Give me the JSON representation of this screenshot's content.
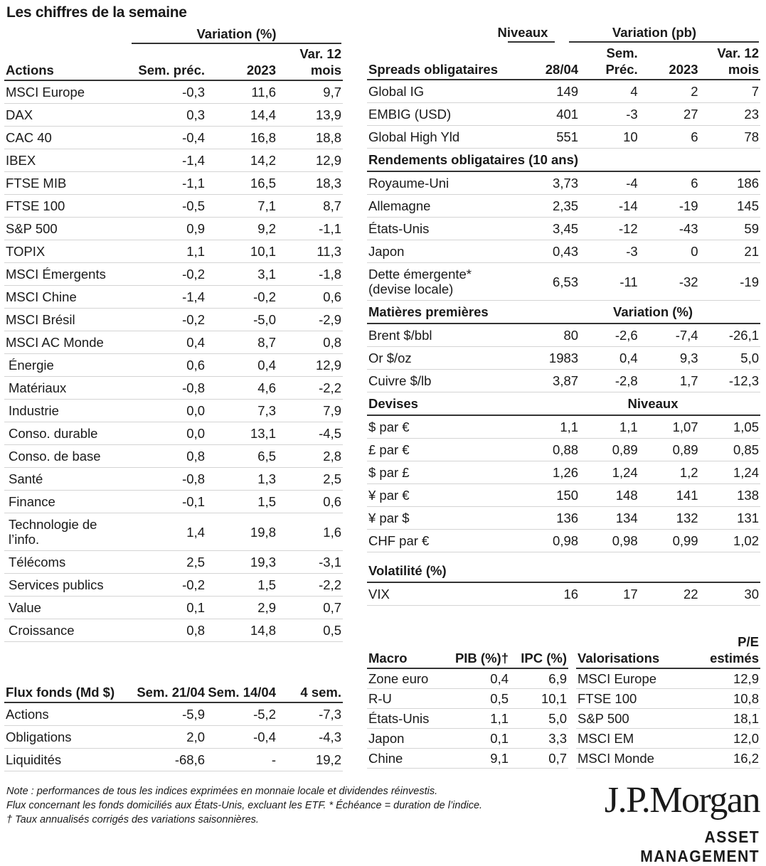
{
  "title": "Les chiffres de la semaine",
  "actions": {
    "group_label": "Variation (%)",
    "headers": [
      "Actions",
      "Sem. préc.",
      "2023",
      "Var. 12 mois"
    ],
    "rows": [
      [
        "MSCI Europe",
        "-0,3",
        "11,6",
        "9,7"
      ],
      [
        "DAX",
        "0,3",
        "14,4",
        "13,9"
      ],
      [
        "CAC 40",
        "-0,4",
        "16,8",
        "18,8"
      ],
      [
        "IBEX",
        "-1,4",
        "14,2",
        "12,9"
      ],
      [
        "FTSE MIB",
        "-1,1",
        "16,5",
        "18,3"
      ],
      [
        "FTSE 100",
        "-0,5",
        "7,1",
        "8,7"
      ],
      [
        "S&P 500",
        "0,9",
        "9,2",
        "-1,1"
      ],
      [
        "TOPIX",
        "1,1",
        "10,1",
        "11,3"
      ],
      [
        "MSCI Émergents",
        "-0,2",
        "3,1",
        "-1,8"
      ],
      [
        "MSCI Chine",
        "-1,4",
        "-0,2",
        "0,6"
      ],
      [
        "MSCI Brésil",
        "-0,2",
        "-5,0",
        "-2,9"
      ],
      [
        "MSCI AC Monde",
        "0,4",
        "8,7",
        "0,8"
      ],
      [
        "Énergie",
        "0,6",
        "0,4",
        "12,9"
      ],
      [
        "Matériaux",
        "-0,8",
        "4,6",
        "-2,2"
      ],
      [
        "Industrie",
        "0,0",
        "7,3",
        "7,9"
      ],
      [
        "Conso. durable",
        "0,0",
        "13,1",
        "-4,5"
      ],
      [
        "Conso. de base",
        "0,8",
        "6,5",
        "2,8"
      ],
      [
        "Santé",
        "-0,8",
        "1,3",
        "2,5"
      ],
      [
        "Finance",
        "-0,1",
        "1,5",
        "0,6"
      ],
      [
        "Technologie de l’info.",
        "1,4",
        "19,8",
        "1,6"
      ],
      [
        "Télécoms",
        "2,5",
        "19,3",
        "-3,1"
      ],
      [
        "Services publics",
        "-0,2",
        "1,5",
        "-2,2"
      ],
      [
        "Value",
        "0,1",
        "2,9",
        "0,7"
      ],
      [
        "Croissance",
        "0,8",
        "14,8",
        "0,5"
      ]
    ]
  },
  "flux": {
    "headers": [
      "Flux fonds (Md $)",
      "Sem. 21/04",
      "Sem. 14/04",
      "4 sem."
    ],
    "rows": [
      [
        "Actions",
        "-5,9",
        "-5,2",
        "-7,3"
      ],
      [
        "Obligations",
        "2,0",
        "-0,4",
        "-4,3"
      ],
      [
        "Liquidités",
        "-68,6",
        "-",
        "19,2"
      ]
    ]
  },
  "spreads": {
    "group_levels": "Niveaux",
    "group_variation": "Variation (pb)",
    "headers": [
      "Spreads obligataires",
      "28/04",
      "Sem. Préc.",
      "2023",
      "Var. 12 mois"
    ],
    "sections": [
      {
        "heading": null,
        "rows": [
          [
            "Global IG",
            "149",
            "4",
            "2",
            "7"
          ],
          [
            "EMBIG (USD)",
            "401",
            "-3",
            "27",
            "23"
          ],
          [
            "Global High Yld",
            "551",
            "10",
            "6",
            "78"
          ]
        ]
      },
      {
        "heading": "Rendements obligataires (10 ans)",
        "heading_right": "",
        "rows": [
          [
            "Royaume-Uni",
            "3,73",
            "-4",
            "6",
            "186"
          ],
          [
            "Allemagne",
            "2,35",
            "-14",
            "-19",
            "145"
          ],
          [
            "États-Unis",
            "3,45",
            "-12",
            "-43",
            "59"
          ],
          [
            "Japon",
            "0,43",
            "-3",
            "0",
            "21"
          ],
          [
            "Dette émergente* (devise locale)",
            "6,53",
            "-11",
            "-32",
            "-19"
          ]
        ]
      },
      {
        "heading": "Matières premières",
        "heading_right": "Variation (%)",
        "rows": [
          [
            "Brent $/bbl",
            "80",
            "-2,6",
            "-7,4",
            "-26,1"
          ],
          [
            "Or $/oz",
            "1983",
            "0,4",
            "9,3",
            "5,0"
          ],
          [
            "Cuivre $/lb",
            "3,87",
            "-2,8",
            "1,7",
            "-12,3"
          ]
        ]
      },
      {
        "heading": "Devises",
        "heading_right": "Niveaux",
        "rows": [
          [
            "$ par €",
            "1,1",
            "1,1",
            "1,07",
            "1,05"
          ],
          [
            "£ par €",
            "0,88",
            "0,89",
            "0,89",
            "0,85"
          ],
          [
            "$ par £",
            "1,26",
            "1,24",
            "1,2",
            "1,24"
          ],
          [
            "¥ par €",
            "150",
            "148",
            "141",
            "138"
          ],
          [
            "¥ par $",
            "136",
            "134",
            "132",
            "131"
          ],
          [
            "CHF par €",
            "0,98",
            "0,98",
            "0,99",
            "1,02"
          ]
        ]
      },
      {
        "heading": "Volatilité (%)",
        "heading_right": "",
        "rows": [
          [
            "VIX",
            "16",
            "17",
            "22",
            "30"
          ]
        ]
      }
    ]
  },
  "macro": {
    "headers": [
      "Macro",
      "PIB (%)†",
      "IPC (%)"
    ],
    "rows": [
      [
        "Zone euro",
        "0,4",
        "6,9"
      ],
      [
        "R-U",
        "0,5",
        "10,1"
      ],
      [
        "États-Unis",
        "1,1",
        "5,0"
      ],
      [
        "Japon",
        "0,1",
        "3,3"
      ],
      [
        "Chine",
        "9,1",
        "0,7"
      ]
    ]
  },
  "valorisations": {
    "headers": [
      "Valorisations",
      "P/E estimés"
    ],
    "rows": [
      [
        "MSCI Europe",
        "12,9"
      ],
      [
        "FTSE 100",
        "10,8"
      ],
      [
        "S&P 500",
        "18,1"
      ],
      [
        "MSCI EM",
        "12,0"
      ],
      [
        "MSCI Monde",
        "16,2"
      ]
    ]
  },
  "notes": [
    "Note : performances de tous les indices exprimées en monnaie locale et dividendes réinvestis.",
    "Flux concernant les fonds domiciliés aux États-Unis, excluant les ETF. * Échéance = duration de l’indice.",
    "† Taux annualisés corrigés des variations saisonnières."
  ],
  "logo": {
    "brand": "J.P.Morgan",
    "sub": "ASSET MANAGEMENT"
  }
}
